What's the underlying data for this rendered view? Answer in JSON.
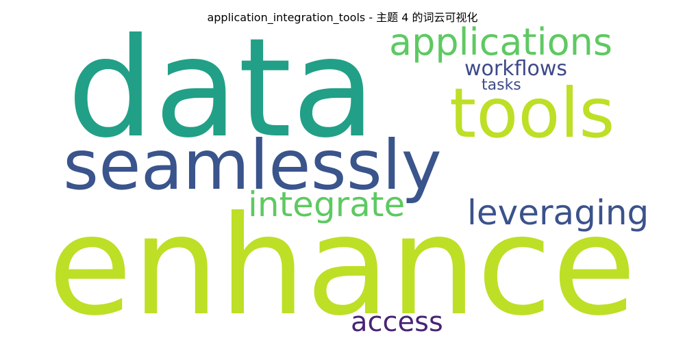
{
  "title": "application_integration_tools - 主题 4 的词云可视化",
  "words": [
    {
      "text": "data",
      "color": "#21a087"
    },
    {
      "text": "enhance",
      "color": "#bddf26"
    },
    {
      "text": "seamlessly",
      "color": "#3a548c"
    },
    {
      "text": "tools",
      "color": "#bddf26"
    },
    {
      "text": "applications",
      "color": "#5ec962"
    },
    {
      "text": "integrate",
      "color": "#5ec962"
    },
    {
      "text": "leveraging",
      "color": "#3b528b"
    },
    {
      "text": "workflows",
      "color": "#3e4989"
    },
    {
      "text": "tasks",
      "color": "#3e4a89"
    },
    {
      "text": "access",
      "color": "#482475"
    }
  ]
}
